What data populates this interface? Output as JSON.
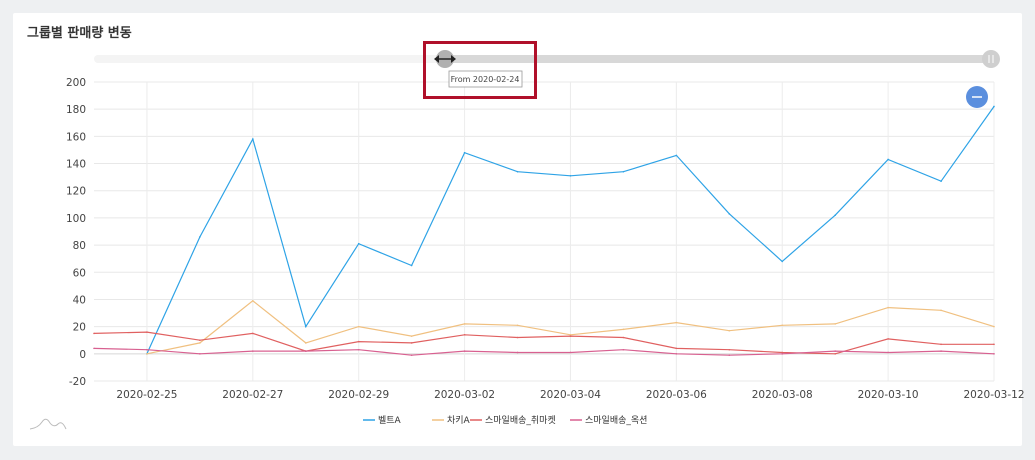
{
  "title": "그룹별 판매량 변동",
  "slider": {
    "tooltip": "From 2020-02-24"
  },
  "colors": {
    "belt": "#2ea3e6",
    "chakey": "#f0c080",
    "smile_choma": "#e06060",
    "smile_ok": "#d86090"
  },
  "chart_data": {
    "type": "line",
    "title": "그룹별 판매량 변동",
    "xlabel": "",
    "ylabel": "",
    "x": [
      "2020-02-24",
      "2020-02-25",
      "2020-02-26",
      "2020-02-27",
      "2020-02-28",
      "2020-02-29",
      "2020-03-01",
      "2020-03-02",
      "2020-03-03",
      "2020-03-04",
      "2020-03-05",
      "2020-03-06",
      "2020-03-07",
      "2020-03-08",
      "2020-03-09",
      "2020-03-10",
      "2020-03-11",
      "2020-03-12"
    ],
    "x_ticks": [
      "2020-02-25",
      "2020-02-27",
      "2020-02-29",
      "2020-03-02",
      "2020-03-04",
      "2020-03-06",
      "2020-03-08",
      "2020-03-10",
      "2020-03-12"
    ],
    "y_ticks": [
      200,
      180,
      160,
      140,
      120,
      100,
      80,
      60,
      40,
      20,
      0,
      -20
    ],
    "ylim": [
      -20,
      200
    ],
    "grid": true,
    "legend": "bottom",
    "series": [
      {
        "name": "벨트A",
        "values": [
          null,
          0,
          86,
          158,
          20,
          81,
          65,
          148,
          134,
          131,
          134,
          146,
          103,
          68,
          102,
          143,
          127,
          182
        ]
      },
      {
        "name": "차키A",
        "values": [
          null,
          0,
          8,
          39,
          8,
          20,
          13,
          22,
          21,
          14,
          18,
          23,
          17,
          21,
          22,
          34,
          32,
          20
        ]
      },
      {
        "name": "스마일배송_취마켓",
        "values": [
          15,
          16,
          10,
          15,
          2,
          9,
          8,
          14,
          12,
          13,
          12,
          4,
          3,
          1,
          0,
          11,
          7,
          7
        ]
      },
      {
        "name": "스마일배송_옥션",
        "values": [
          4,
          3,
          0,
          2,
          2,
          3,
          -1,
          2,
          1,
          1,
          3,
          0,
          -1,
          0,
          2,
          1,
          2,
          0
        ]
      }
    ]
  }
}
